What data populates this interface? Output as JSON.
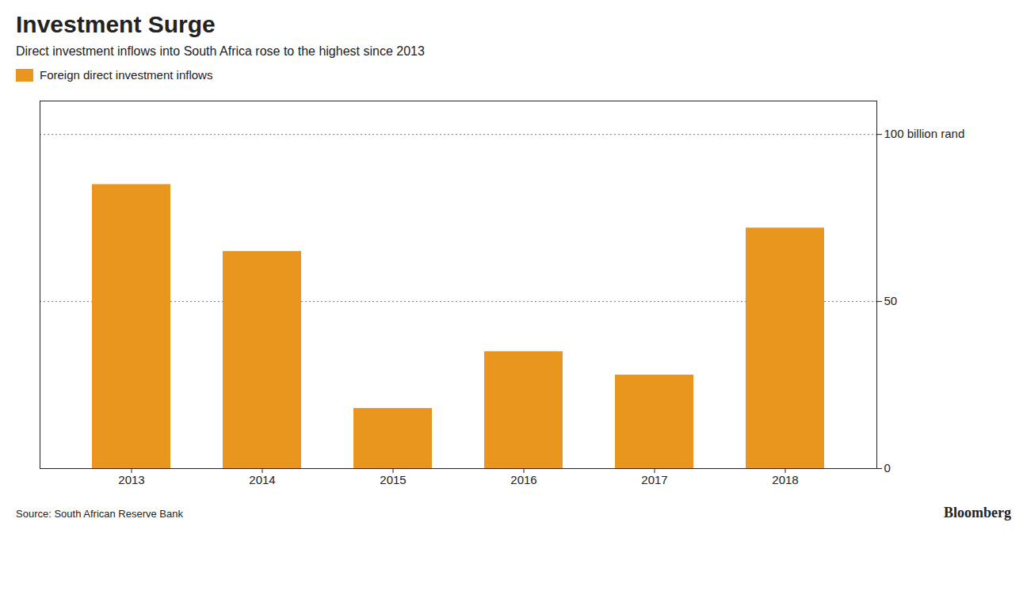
{
  "chart_data": {
    "type": "bar",
    "title": "Investment Surge",
    "subtitle": "Direct investment inflows into South Africa rose to the highest since 2013",
    "categories": [
      "2013",
      "2014",
      "2015",
      "2016",
      "2017",
      "2018"
    ],
    "series": [
      {
        "name": "Foreign direct investment inflows",
        "color": "#E8961E",
        "values": [
          85,
          65,
          18,
          35,
          28,
          72
        ]
      }
    ],
    "ylim": [
      0,
      110
    ],
    "yticks": [
      0,
      50,
      {
        "value": 100,
        "label": "100 billion rand"
      }
    ],
    "grid": true,
    "legend": "top",
    "source": "Source: South African Reserve Bank",
    "annotations": [
      "Bloomberg"
    ]
  }
}
